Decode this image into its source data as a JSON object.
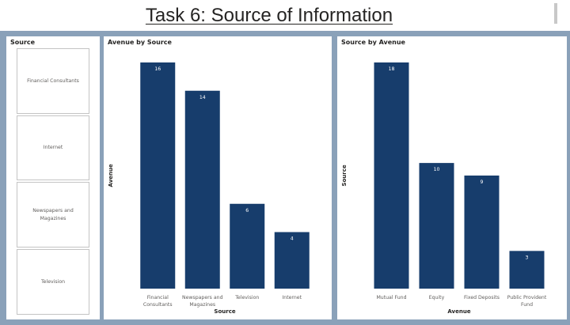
{
  "page": {
    "title": "Task 6: Source of Information"
  },
  "slicer": {
    "title": "Source",
    "items": [
      "Financial Consultants",
      "Internet",
      "Newspapers and Magazines",
      "Television"
    ]
  },
  "colors": {
    "bar": "#173d6c",
    "background": "#8aa1b9",
    "bar_label": "#ffffff"
  },
  "chart_data": [
    {
      "type": "bar",
      "title": "Avenue by Source",
      "xlabel": "Source",
      "ylabel": "Avenue",
      "categories": [
        [
          "Financial",
          "Consultants"
        ],
        [
          "Newspapers and",
          "Magazines"
        ],
        [
          "Television"
        ],
        [
          "Internet"
        ]
      ],
      "values": [
        16,
        14,
        6,
        4
      ],
      "ylim": [
        0,
        16
      ],
      "grid": false,
      "data_labels": true
    },
    {
      "type": "bar",
      "title": "Source by Avenue",
      "xlabel": "Avenue",
      "ylabel": "Source",
      "categories": [
        [
          "Mutual Fund"
        ],
        [
          "Equity"
        ],
        [
          "Fixed Deposits"
        ],
        [
          "Public Provident",
          "Fund"
        ]
      ],
      "values": [
        18,
        10,
        9,
        3
      ],
      "ylim": [
        0,
        18
      ],
      "grid": false,
      "data_labels": true
    }
  ]
}
